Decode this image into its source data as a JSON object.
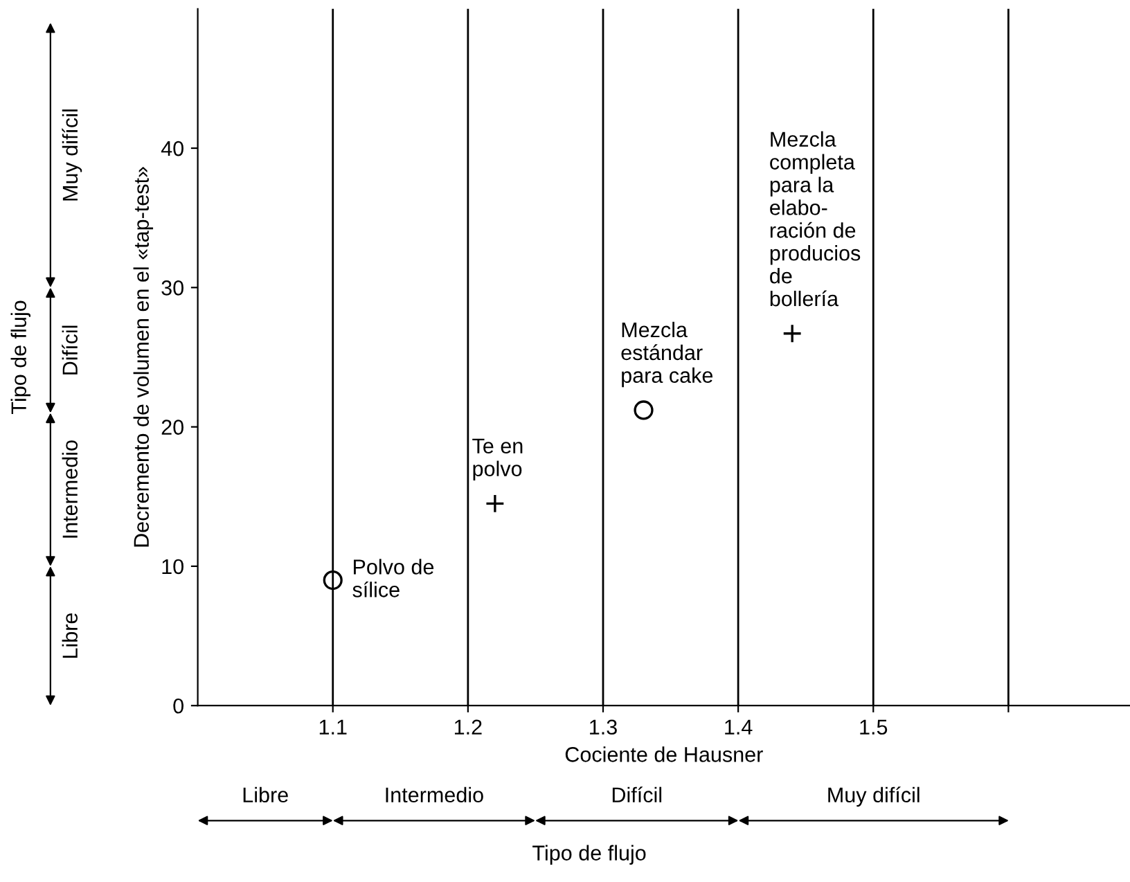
{
  "chart_data": {
    "type": "scatter",
    "xlabel": "Cociente de Hausner",
    "ylabel": "Decremento de volumen en el «tap-test»",
    "series": [
      {
        "color": "#000000",
        "marker": "circle",
        "x": [
          1.1
        ],
        "values": [
          9
        ]
      },
      {
        "color": "#000000",
        "marker": "cross",
        "x": [
          1.22
        ],
        "values": [
          14.5
        ]
      },
      {
        "color": "#000000",
        "marker": "circle",
        "x": [
          1.33
        ],
        "values": [
          21.2
        ]
      },
      {
        "color": "#000000",
        "marker": "cross",
        "x": [
          1.44
        ],
        "values": [
          26.7
        ]
      }
    ],
    "xlim": [
      1.0,
      1.69
    ],
    "ylim": [
      0,
      50
    ],
    "xticks": [
      1.1,
      1.2,
      1.3,
      1.4,
      1.5,
      {
        "value": 1.6,
        "label": null
      }
    ],
    "yticks": [
      0,
      10,
      20,
      30,
      40
    ],
    "grid": "x",
    "annotations": [
      {
        "text": "Polvo de\nsílice",
        "x": 1.1,
        "y": 9
      },
      {
        "text": "Te en\npolvo",
        "x": 1.22,
        "y": 14.5
      },
      {
        "text": "Mezcla\nestándar\npara cake",
        "x": 1.33,
        "y": 21.2
      },
      {
        "text": "Mezcla\ncompleta\npara la\nelabo-\nración de\nproducios\nde\nbollería",
        "x": 1.44,
        "y": 26.7
      },
      "Libre",
      "Intermedio",
      "Difícil",
      "Muy difícil",
      "Tipo de flujo",
      "Libre",
      "Intermedio",
      "Difícil",
      "Muy difícil",
      "Tipo de flujo"
    ]
  }
}
